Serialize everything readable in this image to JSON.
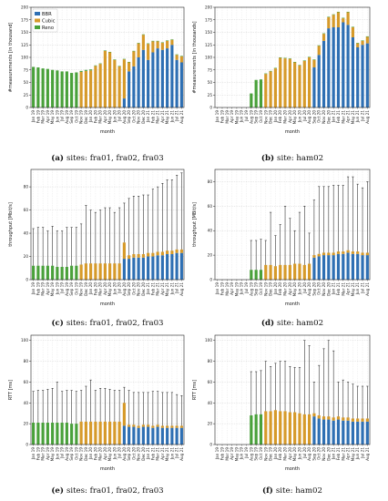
{
  "colors": {
    "bbr": "#2e6fb3",
    "cubic": "#d69a2a",
    "reno": "#49a13a",
    "whisker": "#111111"
  },
  "months": [
    "Jan 19",
    "Feb 19",
    "Mar 19",
    "Apr 19",
    "May 19",
    "Jun 19",
    "Jul 19",
    "Aug 19",
    "Sep 19",
    "Oct 19",
    "Nov 19",
    "Dec 19",
    "Jan 20",
    "Feb 20",
    "Mar 20",
    "Apr 20",
    "May 20",
    "Jun 20",
    "Jul 20",
    "Aug 20",
    "Sep 20",
    "Oct 20",
    "Nov 20",
    "Dec 20",
    "Jan 21",
    "Feb 21",
    "Mar 21",
    "Apr 21",
    "May 21",
    "Jun 21",
    "Jul 21",
    "Aug 21"
  ],
  "chart_data": [
    {
      "id": "a",
      "type": "bar",
      "stacked": true,
      "caption_tag": "(a)",
      "caption_text": "sites: fra01, fra02, fra03",
      "xlabel": "month",
      "ylabel": "#measurements [in thousand]",
      "ylim": [
        0,
        200
      ],
      "yticks": [
        0,
        25,
        50,
        75,
        100,
        125,
        150,
        175,
        200
      ],
      "grid": true,
      "legend": "top-left",
      "series": [
        {
          "name": "BBR",
          "values": [
            0,
            0,
            0,
            0,
            0,
            0,
            0,
            0,
            0,
            0,
            0,
            0,
            0,
            0,
            0,
            0,
            0,
            0,
            0,
            18,
            72,
            82,
            100,
            115,
            95,
            110,
            118,
            115,
            118,
            125,
            95,
            90
          ]
        },
        {
          "name": "Cubic",
          "values": [
            0,
            0,
            0,
            0,
            0,
            0,
            0,
            0,
            0,
            0,
            71,
            73,
            74,
            83,
            87,
            113,
            110,
            95,
            82,
            78,
            18,
            30,
            28,
            30,
            32,
            22,
            14,
            14,
            15,
            10,
            10,
            12
          ]
        },
        {
          "name": "Reno",
          "values": [
            81,
            80,
            78,
            77,
            75,
            74,
            72,
            72,
            69,
            70,
            2,
            2,
            2,
            1,
            1,
            1,
            1,
            1,
            1,
            1,
            1,
            1,
            1,
            1,
            1,
            1,
            1,
            1,
            1,
            1,
            1,
            1
          ]
        }
      ]
    },
    {
      "id": "b",
      "type": "bar",
      "stacked": true,
      "caption_tag": "(b)",
      "caption_text": "site: ham02",
      "xlabel": "month",
      "ylabel": "#measurements [in thousands]",
      "ylim": [
        0,
        200
      ],
      "yticks": [
        0,
        25,
        50,
        75,
        100,
        125,
        150,
        175,
        200
      ],
      "grid": true,
      "legend": "",
      "series": [
        {
          "name": "BBR",
          "values": [
            0,
            0,
            0,
            0,
            0,
            0,
            0,
            0,
            0,
            0,
            0,
            0,
            0,
            0,
            0,
            0,
            0,
            0,
            0,
            0,
            80,
            105,
            133,
            158,
            160,
            160,
            170,
            165,
            140,
            120,
            125,
            128
          ]
        },
        {
          "name": "Cubic",
          "values": [
            0,
            0,
            0,
            0,
            0,
            0,
            0,
            0,
            0,
            0,
            67,
            72,
            78,
            99,
            98,
            97,
            90,
            84,
            93,
            100,
            15,
            18,
            14,
            22,
            25,
            30,
            8,
            25,
            20,
            8,
            8,
            13
          ]
        },
        {
          "name": "Reno",
          "values": [
            0,
            0,
            0,
            0,
            0,
            0,
            0,
            28,
            55,
            56,
            1,
            1,
            1,
            1,
            1,
            1,
            1,
            1,
            1,
            1,
            1,
            1,
            1,
            1,
            1,
            1,
            1,
            1,
            1,
            1,
            1,
            1
          ]
        }
      ]
    },
    {
      "id": "c",
      "type": "bar",
      "stacked": true,
      "whiskers": true,
      "caption_tag": "(c)",
      "caption_text": "sites: fra01, fra02, fra03",
      "xlabel": "month",
      "ylabel": "throughput [Mbit/s]",
      "ylim": [
        0,
        95
      ],
      "yticks": [
        0,
        20,
        40,
        60,
        80
      ],
      "grid": true,
      "legend": "",
      "series": [
        {
          "name": "BBR",
          "values": [
            0,
            0,
            0,
            0,
            0,
            0,
            0,
            0,
            0,
            0,
            0,
            0,
            0,
            0,
            0,
            0,
            0,
            0,
            0,
            18,
            18,
            19,
            19,
            19,
            20,
            20,
            21,
            21,
            22,
            22,
            23,
            23
          ]
        },
        {
          "name": "Cubic",
          "values": [
            0,
            0,
            0,
            0,
            0,
            0,
            0,
            0,
            0,
            0,
            13,
            14,
            14,
            14,
            14,
            14,
            14,
            14,
            14,
            14,
            3,
            3,
            3,
            3,
            3,
            3,
            3,
            3,
            3,
            3,
            3,
            3
          ]
        },
        {
          "name": "Reno",
          "values": [
            12,
            12,
            12,
            12,
            12,
            11,
            11,
            11,
            12,
            12,
            0,
            0,
            0,
            0,
            0,
            0,
            0,
            0,
            0,
            0,
            0,
            0,
            0,
            0,
            0,
            0,
            0,
            0,
            0,
            0,
            0,
            0
          ]
        }
      ],
      "whisker_high": [
        44,
        45,
        45,
        42,
        46,
        42,
        42,
        45,
        45,
        45,
        48,
        64,
        60,
        58,
        60,
        62,
        62,
        58,
        62,
        66,
        70,
        72,
        72,
        73,
        73,
        78,
        80,
        83,
        86,
        86,
        90,
        92
      ]
    },
    {
      "id": "d",
      "type": "bar",
      "stacked": true,
      "whiskers": true,
      "caption_tag": "(d)",
      "caption_text": "site: ham02",
      "xlabel": "month",
      "ylabel": "throughput [MBit/s]",
      "ylim": [
        0,
        90
      ],
      "yticks": [
        0,
        20,
        40,
        60,
        80
      ],
      "grid": true,
      "legend": "",
      "series": [
        {
          "name": "BBR",
          "values": [
            0,
            0,
            0,
            0,
            0,
            0,
            0,
            0,
            0,
            0,
            0,
            0,
            0,
            0,
            0,
            0,
            0,
            0,
            0,
            0,
            18,
            19,
            20,
            20,
            20,
            21,
            21,
            22,
            21,
            21,
            20,
            20
          ]
        },
        {
          "name": "Cubic",
          "values": [
            0,
            0,
            0,
            0,
            0,
            0,
            0,
            0,
            0,
            0,
            12,
            12,
            11,
            12,
            12,
            12,
            13,
            13,
            12,
            13,
            2,
            2,
            2,
            2,
            2,
            2,
            2,
            2,
            2,
            2,
            2,
            2
          ]
        },
        {
          "name": "Reno",
          "values": [
            0,
            0,
            0,
            0,
            0,
            0,
            0,
            8,
            8,
            8,
            0,
            0,
            0,
            0,
            0,
            0,
            0,
            0,
            0,
            0,
            0,
            0,
            0,
            0,
            0,
            0,
            0,
            0,
            0,
            0,
            0,
            0
          ]
        }
      ],
      "whisker_high": [
        0,
        0,
        0,
        0,
        0,
        0,
        0,
        32,
        32,
        33,
        32,
        55,
        36,
        45,
        60,
        50,
        40,
        55,
        60,
        38,
        65,
        76,
        76,
        76,
        77,
        77,
        77,
        84,
        84,
        78,
        75,
        80
      ]
    },
    {
      "id": "e",
      "type": "bar",
      "stacked": true,
      "whiskers": true,
      "caption_tag": "(e)",
      "caption_text": "sites: fra01, fra02, fra03",
      "xlabel": "month",
      "ylabel": "RTT [ms]",
      "ylim": [
        0,
        105
      ],
      "yticks": [
        0,
        20,
        40,
        60,
        80,
        100
      ],
      "grid": true,
      "legend": "",
      "series": [
        {
          "name": "BBR",
          "values": [
            0,
            0,
            0,
            0,
            0,
            0,
            0,
            0,
            0,
            0,
            0,
            0,
            0,
            0,
            0,
            0,
            0,
            0,
            0,
            18,
            17,
            17,
            16,
            17,
            17,
            16,
            17,
            16,
            16,
            16,
            16,
            16
          ]
        },
        {
          "name": "Cubic",
          "values": [
            0,
            0,
            0,
            0,
            0,
            0,
            0,
            0,
            0,
            0,
            22,
            22,
            22,
            22,
            22,
            22,
            22,
            22,
            22,
            22,
            2,
            2,
            2,
            2,
            2,
            2,
            2,
            2,
            2,
            2,
            2,
            2
          ]
        },
        {
          "name": "Reno",
          "values": [
            21,
            21,
            21,
            21,
            21,
            21,
            21,
            21,
            20,
            20,
            0,
            0,
            0,
            0,
            0,
            0,
            0,
            0,
            0,
            0,
            0,
            0,
            0,
            0,
            0,
            0,
            0,
            0,
            0,
            0,
            0,
            0
          ]
        }
      ],
      "whisker_high": [
        51,
        52,
        52,
        53,
        54,
        60,
        51,
        52,
        52,
        51,
        52,
        56,
        62,
        52,
        54,
        54,
        53,
        52,
        52,
        55,
        52,
        50,
        50,
        50,
        50,
        51,
        51,
        50,
        50,
        50,
        48,
        47
      ]
    },
    {
      "id": "f",
      "type": "bar",
      "stacked": true,
      "whiskers": true,
      "caption_tag": "(f)",
      "caption_text": "site: ham02",
      "xlabel": "month",
      "ylabel": "RTT [ms]",
      "ylim": [
        0,
        105
      ],
      "yticks": [
        0,
        20,
        40,
        60,
        80,
        100
      ],
      "grid": true,
      "legend": "",
      "series": [
        {
          "name": "BBR",
          "values": [
            0,
            0,
            0,
            0,
            0,
            0,
            0,
            0,
            0,
            0,
            0,
            0,
            0,
            0,
            0,
            0,
            0,
            0,
            0,
            0,
            27,
            25,
            24,
            24,
            23,
            24,
            23,
            23,
            22,
            22,
            22,
            22
          ]
        },
        {
          "name": "Cubic",
          "values": [
            0,
            0,
            0,
            0,
            0,
            0,
            0,
            0,
            0,
            0,
            32,
            32,
            33,
            32,
            32,
            31,
            31,
            30,
            29,
            29,
            3,
            3,
            3,
            3,
            3,
            3,
            3,
            3,
            3,
            3,
            3,
            3
          ]
        },
        {
          "name": "Reno",
          "values": [
            0,
            0,
            0,
            0,
            0,
            0,
            0,
            28,
            29,
            29,
            0,
            0,
            0,
            0,
            0,
            0,
            0,
            0,
            0,
            0,
            0,
            0,
            0,
            0,
            0,
            0,
            0,
            0,
            0,
            0,
            0,
            0
          ]
        }
      ],
      "whisker_high": [
        0,
        0,
        0,
        0,
        0,
        0,
        0,
        70,
        70,
        71,
        80,
        75,
        78,
        80,
        80,
        75,
        74,
        74,
        100,
        95,
        60,
        76,
        92,
        100,
        90,
        60,
        62,
        60,
        58,
        56,
        56,
        56
      ]
    }
  ]
}
